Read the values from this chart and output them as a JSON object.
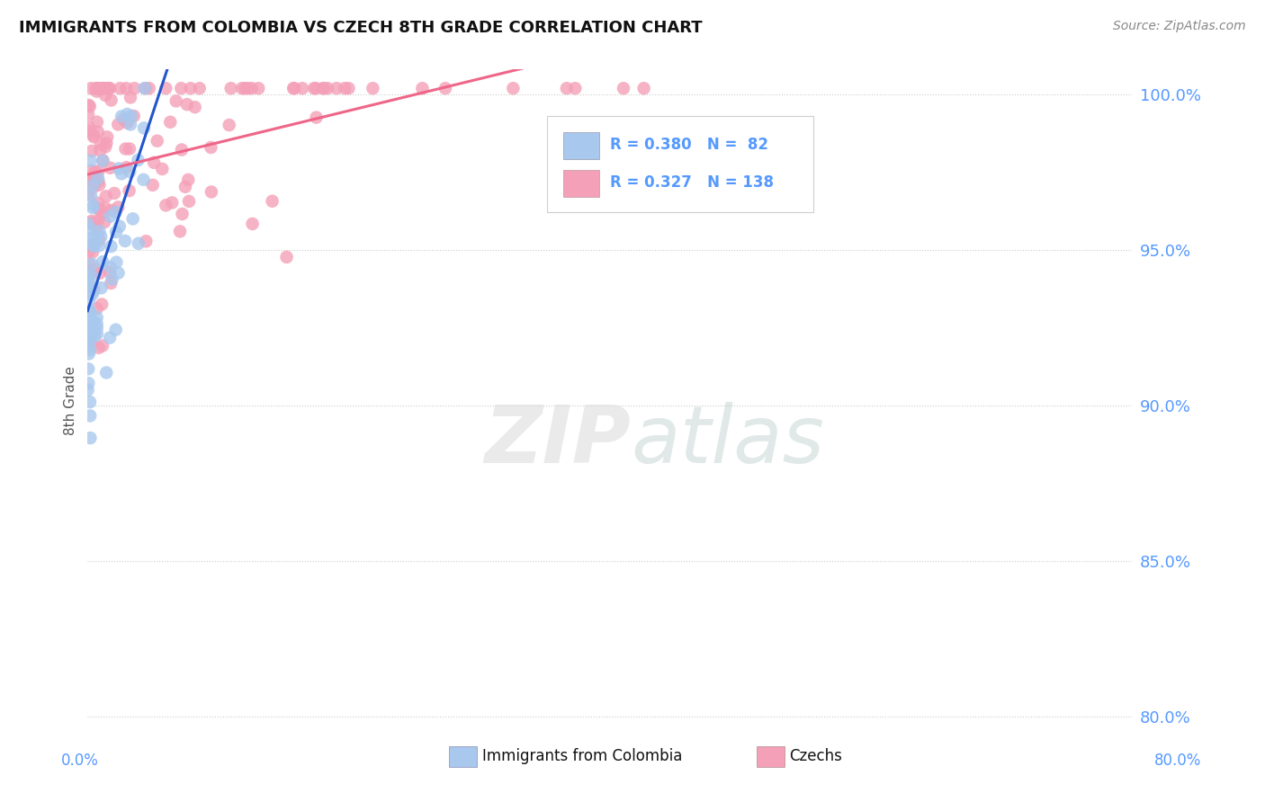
{
  "title": "IMMIGRANTS FROM COLOMBIA VS CZECH 8TH GRADE CORRELATION CHART",
  "source_text": "Source: ZipAtlas.com",
  "ylabel": "8th Grade",
  "ytick_labels": [
    "80.0%",
    "85.0%",
    "90.0%",
    "95.0%",
    "100.0%"
  ],
  "ytick_values": [
    0.8,
    0.85,
    0.9,
    0.95,
    1.0
  ],
  "xlim": [
    0.0,
    0.8
  ],
  "ylim": [
    0.795,
    1.008
  ],
  "colombia_R": 0.38,
  "colombia_N": 82,
  "czech_R": 0.327,
  "czech_N": 138,
  "colombia_color": "#A8C8EE",
  "czech_color": "#F4A0B8",
  "colombia_line_color": "#2255CC",
  "czech_line_color": "#EE6688",
  "background_color": "#FFFFFF",
  "watermark_color": "#DDDDDD",
  "grid_color": "#CCCCCC",
  "title_color": "#111111",
  "source_color": "#888888",
  "tick_label_color": "#5599FF",
  "bottom_label_color": "#111111"
}
